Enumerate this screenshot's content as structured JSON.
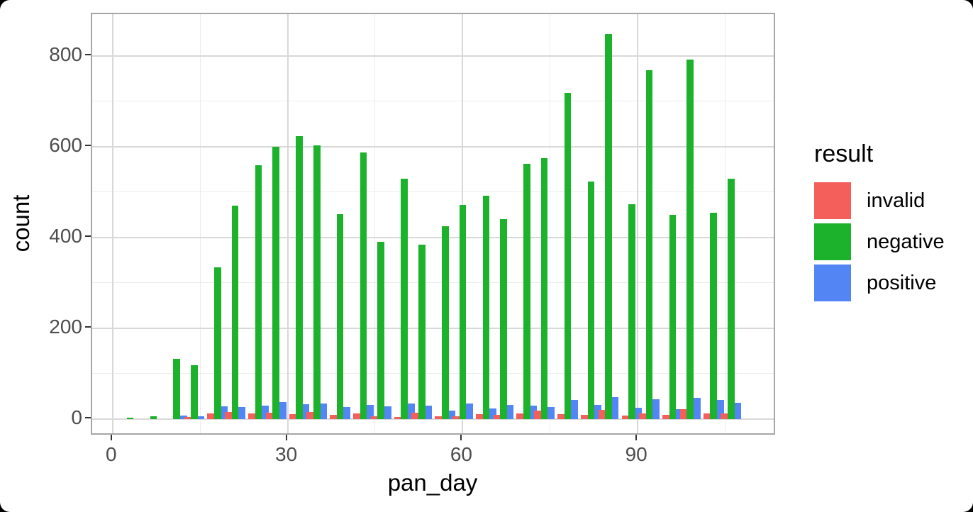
{
  "chart_data": {
    "type": "bar",
    "bar_mode": "dodge",
    "title": "",
    "xlabel": "pan_day",
    "ylabel": "count",
    "x": [
      3,
      7,
      11,
      14,
      18,
      21,
      25,
      28,
      32,
      35,
      39,
      43,
      46,
      50,
      53,
      57,
      60,
      64,
      67,
      71,
      74,
      78,
      82,
      85,
      89,
      92,
      96,
      99,
      103,
      106
    ],
    "series": [
      {
        "name": "invalid",
        "color": "#f45f5c",
        "values": [
          0,
          0,
          0,
          4,
          13,
          15,
          12,
          14,
          11,
          15,
          9,
          12,
          7,
          5,
          14,
          7,
          6,
          11,
          9,
          13,
          18,
          11,
          9,
          20,
          8,
          12,
          10,
          22,
          12,
          13
        ]
      },
      {
        "name": "negative",
        "color": "#1cb22b",
        "values": [
          3,
          6,
          133,
          118,
          335,
          470,
          560,
          600,
          623,
          603,
          452,
          588,
          390,
          530,
          385,
          425,
          472,
          492,
          440,
          562,
          575,
          718,
          523,
          848,
          473,
          769,
          450,
          792,
          455,
          530
        ]
      },
      {
        "name": "positive",
        "color": "#5386f4",
        "values": [
          0,
          0,
          8,
          6,
          28,
          26,
          29,
          38,
          33,
          35,
          26,
          32,
          28,
          34,
          30,
          18,
          35,
          24,
          32,
          29,
          27,
          42,
          32,
          49,
          25,
          44,
          22,
          47,
          42,
          36
        ]
      }
    ],
    "x_range": [
      -3.5,
      113.8
    ],
    "y_range": [
      -37.5,
      892
    ],
    "x_major_ticks": [
      0,
      30,
      60,
      90
    ],
    "x_minor_ticks": [
      15,
      45,
      75,
      105
    ],
    "y_major_ticks": [
      0,
      200,
      400,
      600,
      800
    ],
    "y_minor_ticks": [
      100,
      300,
      500,
      700
    ],
    "x_tick_labels": [
      "0",
      "30",
      "60",
      "90"
    ],
    "y_tick_labels": [
      "0",
      "200",
      "400",
      "600",
      "800"
    ],
    "grid": true,
    "legend_position": "right"
  },
  "axes": {
    "x_title": "pan_day",
    "y_title": "count"
  },
  "legend": {
    "title": "result",
    "items": [
      {
        "label": "invalid",
        "color": "#f45f5c"
      },
      {
        "label": "negative",
        "color": "#1cb22b"
      },
      {
        "label": "positive",
        "color": "#5386f4"
      }
    ]
  },
  "theme": {
    "page_background": "#000000",
    "figure_background": "#ffffff",
    "panel_border": "#a6a6a6",
    "grid_major": "#d8d8d8",
    "grid_minor": "#ececec",
    "tick_label_color": "#4d4d4d",
    "axis_title_color": "#000000"
  }
}
